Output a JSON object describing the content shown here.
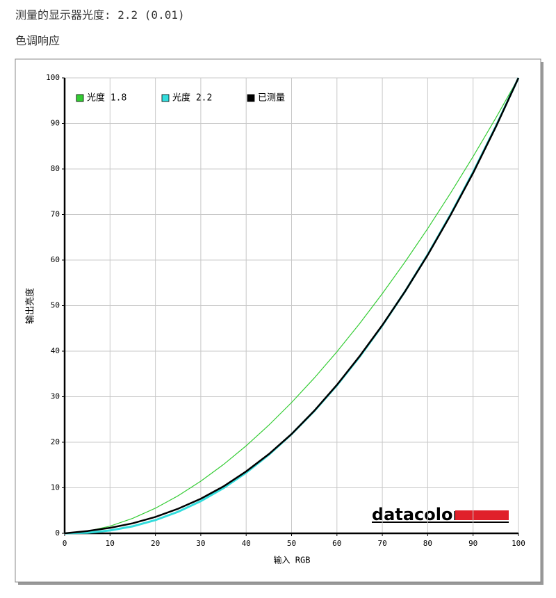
{
  "header": {
    "title": "测量的显示器光度: 2.2 (0.01)",
    "subtitle": "色调响应"
  },
  "chart_data": {
    "type": "line",
    "xlabel": "输入 RGB",
    "ylabel": "输出亮度",
    "logo": "datacolor",
    "x": [
      0,
      5,
      10,
      15,
      20,
      25,
      30,
      35,
      40,
      45,
      50,
      55,
      60,
      65,
      70,
      75,
      80,
      85,
      90,
      95,
      100
    ],
    "series": [
      {
        "name": "光度 1.8",
        "color": "#33cc33",
        "width": 1.2,
        "values": [
          0,
          0.46,
          1.58,
          3.29,
          5.52,
          8.25,
          11.45,
          15.11,
          19.22,
          23.76,
          28.72,
          34.09,
          39.87,
          46.05,
          52.63,
          59.58,
          66.92,
          74.64,
          82.72,
          91.18,
          100
        ]
      },
      {
        "name": "光度 2.2",
        "color": "#33dddd",
        "width": 3,
        "values": [
          0,
          0.14,
          0.63,
          1.54,
          2.9,
          4.74,
          7.07,
          9.93,
          13.32,
          17.26,
          21.76,
          26.84,
          32.5,
          38.76,
          45.62,
          53.11,
          61.21,
          69.94,
          79.31,
          89.33,
          100
        ]
      },
      {
        "name": "已测量",
        "color": "#000000",
        "width": 2.5,
        "values": [
          0,
          0.5,
          1.2,
          2.2,
          3.6,
          5.4,
          7.6,
          10.3,
          13.6,
          17.4,
          21.8,
          26.9,
          32.6,
          38.9,
          45.7,
          53.1,
          61.1,
          69.8,
          79.1,
          89.2,
          100
        ]
      }
    ],
    "xlim": [
      0,
      100
    ],
    "ylim": [
      0,
      100
    ],
    "xticks": [
      0,
      10,
      20,
      30,
      40,
      50,
      60,
      70,
      80,
      90,
      100
    ],
    "yticks": [
      0,
      10,
      20,
      30,
      40,
      50,
      60,
      70,
      80,
      90,
      100
    ],
    "grid": true,
    "legend": "top-left"
  }
}
